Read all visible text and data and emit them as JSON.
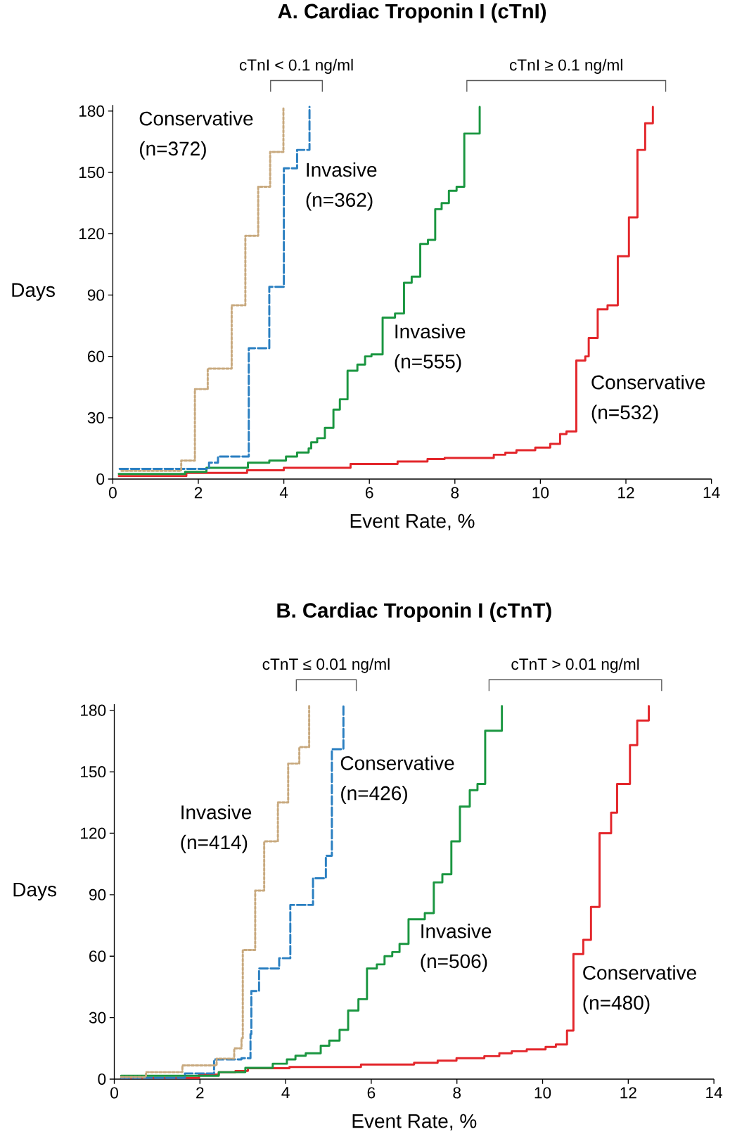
{
  "chart_data": [
    {
      "type": "step",
      "title": "A. Cardiac Troponin I (cTnI)",
      "xlabel": "Event Rate, %",
      "ylabel": "Days",
      "xlim": [
        0,
        14
      ],
      "ylim": [
        0,
        183
      ],
      "xticks": [
        0,
        2,
        4,
        6,
        8,
        10,
        12,
        14
      ],
      "yticks": [
        0,
        30,
        60,
        90,
        120,
        150,
        180
      ],
      "annotations": [
        "cTnI < 0.1 ng/ml",
        "cTnI ≥ 0.1 ng/ml"
      ],
      "series": [
        {
          "name": "Conservative (n=372)",
          "color": "#c8a97e",
          "line_style": "dotted",
          "x": [
            0.2,
            1.6,
            1.92,
            2.22,
            2.78,
            3.1,
            3.4,
            3.68,
            3.99
          ],
          "values": [
            4,
            9,
            44,
            54,
            85,
            119,
            143,
            160,
            182
          ]
        },
        {
          "name": "Invasive (n=362)",
          "color": "#2a7fc1",
          "line_style": "dashed",
          "x": [
            0.16,
            2.25,
            2.46,
            3.18,
            3.66,
            4.0,
            4.31,
            4.6
          ],
          "values": [
            5,
            8,
            11,
            64,
            94,
            152,
            161,
            182
          ]
        },
        {
          "name": "Invasive (n=555)",
          "color": "#1a9640",
          "line_style": "solid",
          "x": [
            0.14,
            1.69,
            2.19,
            3.16,
            3.66,
            4.05,
            4.31,
            4.58,
            4.64,
            4.78,
            4.96,
            5.16,
            5.31,
            5.49,
            5.72,
            5.9,
            6.05,
            6.31,
            6.6,
            6.81,
            6.99,
            7.19,
            7.37,
            7.54,
            7.69,
            7.86,
            8.04,
            8.22,
            8.58
          ],
          "values": [
            2.5,
            3.5,
            5.5,
            8,
            9,
            11,
            13,
            15,
            18,
            20,
            25,
            34,
            39,
            53,
            56,
            60,
            61,
            79,
            81,
            96,
            99,
            115,
            117,
            132,
            135,
            141,
            143,
            169,
            182
          ]
        },
        {
          "name": "Conservative (n=532)",
          "color": "#e3262b",
          "line_style": "solid",
          "x": [
            0.14,
            1.72,
            3.14,
            4.0,
            5.56,
            6.66,
            7.36,
            7.76,
            8.91,
            9.18,
            9.44,
            9.88,
            10.23,
            10.46,
            10.61,
            10.84,
            11.05,
            11.13,
            11.34,
            11.57,
            11.81,
            12.07,
            12.27,
            12.45,
            12.63
          ],
          "values": [
            1.5,
            3,
            4.3,
            5.5,
            7.4,
            8.6,
            9.8,
            10.3,
            11.9,
            12.9,
            14.1,
            15.4,
            17.2,
            22,
            23.3,
            58,
            60,
            69,
            83,
            85,
            109,
            128,
            161,
            174,
            182
          ]
        }
      ]
    },
    {
      "type": "step",
      "title": "B. Cardiac Troponin I (cTnT)",
      "xlabel": "Event Rate, %",
      "ylabel": "Days",
      "xlim": [
        0,
        14
      ],
      "ylim": [
        0,
        183
      ],
      "xticks": [
        0,
        2,
        4,
        6,
        8,
        10,
        12,
        14
      ],
      "yticks": [
        0,
        30,
        60,
        90,
        120,
        150,
        180
      ],
      "annotations": [
        "cTnT ≤ 0.01 ng/ml",
        "cTnT > 0.01 ng/ml"
      ],
      "series": [
        {
          "name": "Invasive (n=414)",
          "color": "#c8a97e",
          "line_style": "dotted",
          "x": [
            0.16,
            0.74,
            1.59,
            2.39,
            2.8,
            2.97,
            3.0,
            3.29,
            3.5,
            3.82,
            4.06,
            4.32,
            4.55
          ],
          "values": [
            1,
            3.4,
            6.7,
            10,
            15,
            20,
            63,
            92,
            116,
            135,
            154,
            162,
            182
          ]
        },
        {
          "name": "Conservative (n=426)",
          "color": "#2a7fc1",
          "line_style": "dashed",
          "x": [
            0.16,
            1.65,
            2.33,
            2.97,
            3.18,
            3.2,
            3.38,
            3.85,
            4.11,
            4.64,
            4.94,
            5.08,
            5.35
          ],
          "values": [
            0.6,
            2.8,
            9.6,
            10.2,
            22,
            43,
            54,
            59,
            85,
            98,
            109,
            161,
            182
          ]
        },
        {
          "name": "Invasive (n=506)",
          "color": "#1a9640",
          "line_style": "solid",
          "x": [
            0.16,
            2.44,
            3.06,
            3.7,
            4.03,
            4.23,
            4.47,
            4.82,
            5.02,
            5.26,
            5.46,
            5.7,
            5.9,
            6.13,
            6.31,
            6.49,
            6.66,
            6.87,
            7.25,
            7.46,
            7.66,
            7.87,
            8.07,
            8.3,
            8.48,
            8.66,
            9.05
          ],
          "values": [
            1.6,
            3.4,
            5.5,
            7.5,
            9.6,
            11.4,
            12.6,
            16.3,
            18.8,
            24,
            33.5,
            39,
            54,
            56,
            60,
            62,
            66,
            78,
            81,
            96,
            100,
            116,
            133,
            141,
            144,
            170,
            182
          ]
        },
        {
          "name": "Conservative (n=480)",
          "color": "#e3262b",
          "line_style": "solid",
          "x": [
            0.16,
            1.98,
            2.44,
            2.83,
            3.12,
            4.09,
            5.76,
            7.0,
            7.55,
            7.99,
            8.64,
            8.99,
            9.28,
            9.63,
            10.07,
            10.31,
            10.57,
            10.72,
            10.95,
            11.13,
            11.33,
            11.6,
            11.74,
            12.04,
            12.21,
            12.48
          ],
          "values": [
            0.6,
            2.2,
            3.4,
            4,
            5.3,
            5.9,
            7.1,
            8,
            9,
            10.2,
            11.2,
            12.6,
            13.6,
            14.5,
            15.7,
            16.9,
            23.7,
            61,
            68,
            84,
            120,
            130,
            144,
            163,
            175,
            182
          ]
        }
      ]
    }
  ]
}
